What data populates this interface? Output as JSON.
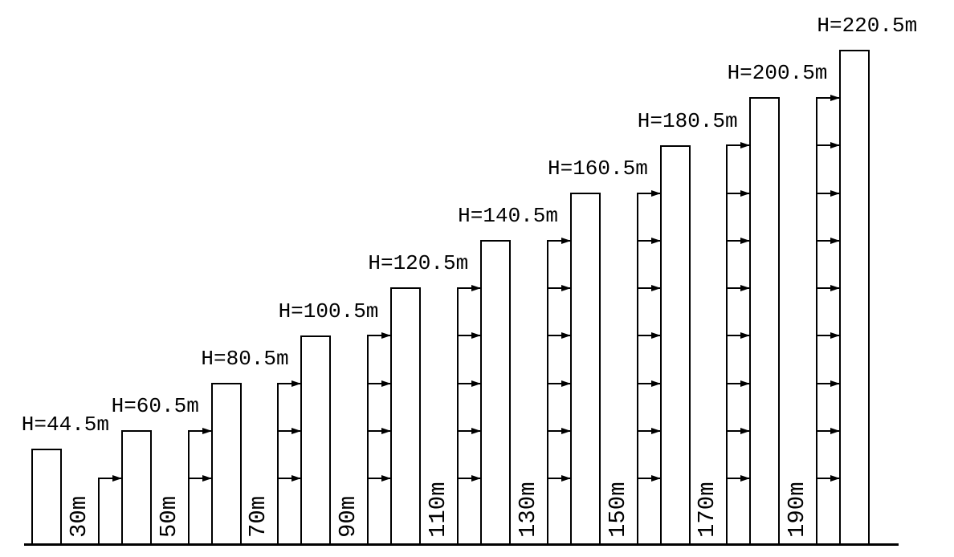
{
  "diagram": {
    "kind": "building-wind-load-elevation",
    "background_color": "#ffffff",
    "line_color": "#000000",
    "units": [
      {
        "id": 1,
        "height_label": "H=44.5m",
        "load_level_label": null,
        "arrow_count": 0
      },
      {
        "id": 2,
        "height_label": "H=60.5m",
        "load_level_label": "30m",
        "arrow_count": 1
      },
      {
        "id": 3,
        "height_label": "H=80.5m",
        "load_level_label": "50m",
        "arrow_count": 2
      },
      {
        "id": 4,
        "height_label": "H=100.5m",
        "load_level_label": "70m",
        "arrow_count": 3
      },
      {
        "id": 5,
        "height_label": "H=120.5m",
        "load_level_label": "90m",
        "arrow_count": 4
      },
      {
        "id": 6,
        "height_label": "H=140.5m",
        "load_level_label": "110m",
        "arrow_count": 5
      },
      {
        "id": 7,
        "height_label": "H=160.5m",
        "load_level_label": "130m",
        "arrow_count": 6
      },
      {
        "id": 8,
        "height_label": "H=180.5m",
        "load_level_label": "150m",
        "arrow_count": 7
      },
      {
        "id": 9,
        "height_label": "H=200.5m",
        "load_level_label": "170m",
        "arrow_count": 8
      },
      {
        "id": 10,
        "height_label": "H=220.5m",
        "load_level_label": "190m",
        "arrow_count": 9
      }
    ]
  }
}
